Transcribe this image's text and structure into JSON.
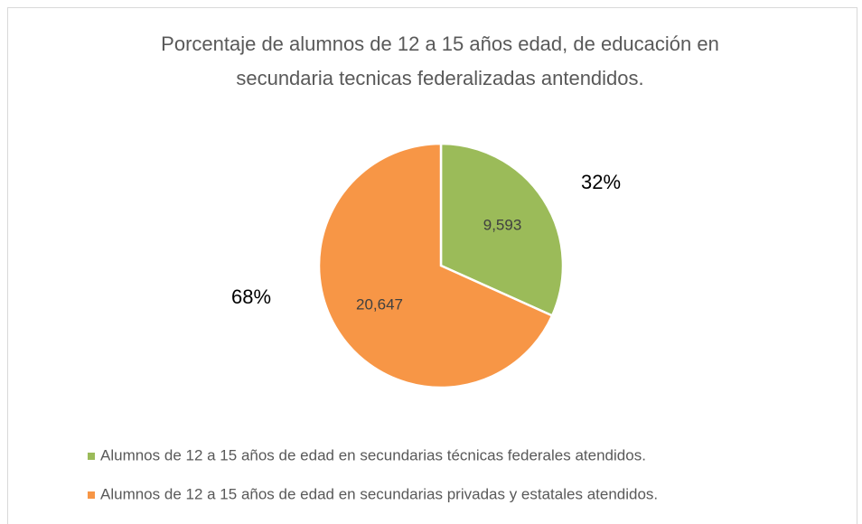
{
  "chart_data": {
    "type": "pie",
    "title": [
      "Porcentaje de alumnos de 12 a 15 años edad, de educación en",
      "secundaria tecnicas federalizadas antendidos."
    ],
    "categories": [
      "Alumnos de 12 a 15 años de edad en secundarias técnicas federales atendidos.",
      "Alumnos de 12 a 15 años de edad en secundarias privadas y estatales atendidos."
    ],
    "values": [
      9593,
      20647
    ],
    "value_labels": [
      "9,593",
      "20,647"
    ],
    "percent_labels": [
      "32%",
      "68%"
    ],
    "colors": [
      "#9bbb59",
      "#f79646"
    ],
    "legend": "bottom"
  }
}
